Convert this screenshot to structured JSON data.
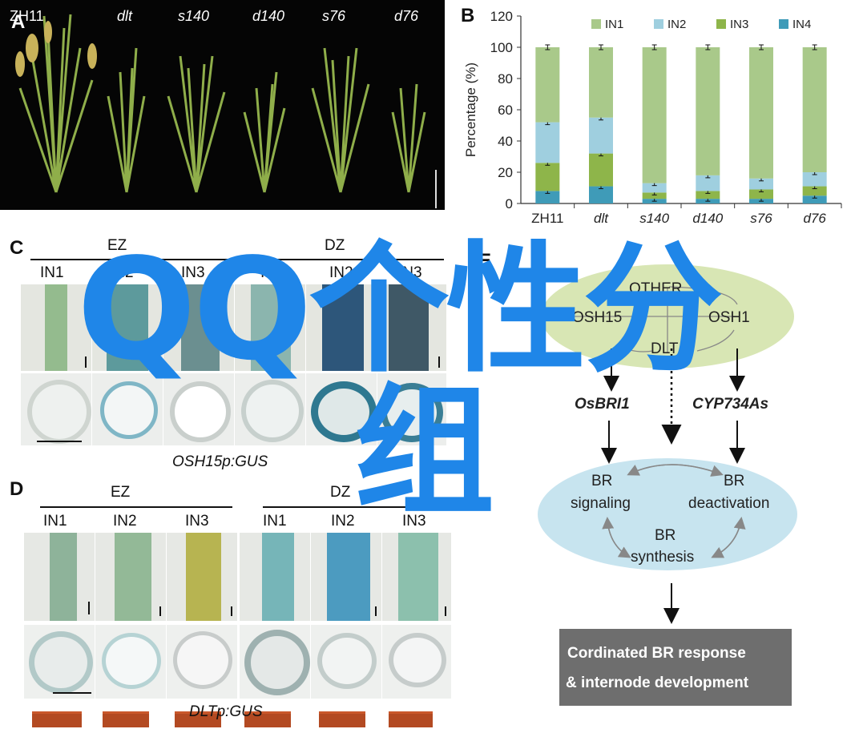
{
  "panels": {
    "A": {
      "letter": "A",
      "genotypes": [
        "ZH11",
        "dlt",
        "s140",
        "d140",
        "s76",
        "d76"
      ]
    },
    "B": {
      "letter": "B"
    },
    "C": {
      "letter": "C",
      "zone_ez": "EZ",
      "zone_dz": "DZ",
      "internodes": [
        "IN1",
        "IN2",
        "IN3",
        "IN1",
        "IN2",
        "IN3"
      ],
      "caption": "OSH15p:GUS"
    },
    "D": {
      "letter": "D",
      "zone_ez": "EZ",
      "zone_dz": "DZ",
      "internodes": [
        "IN1",
        "IN2",
        "IN3",
        "IN1",
        "IN2",
        "IN3"
      ],
      "caption": "DLTp:GUS"
    },
    "E": {
      "letter": "E",
      "complex": [
        "OTHER",
        "OSH15",
        "OSH1",
        "DLT"
      ],
      "targets": [
        "OsBRI1",
        "CYP734As"
      ],
      "br_nodes": {
        "signaling_1": "BR",
        "signaling_2": "signaling",
        "deactivation_1": "BR",
        "deactivation_2": "deactivation",
        "synthesis_1": "BR",
        "synthesis_2": "synthesis"
      },
      "outcome_1": "Cordinated BR response",
      "outcome_2": "& internode development"
    }
  },
  "overlay": {
    "line1": "QQ个性分",
    "line2": "组"
  },
  "colors": {
    "IN1": "#a9c98a",
    "IN2": "#9fcfdf",
    "IN3": "#8eb54a",
    "IN4": "#3f9bb8",
    "overlay": "#1f86e8"
  },
  "chart_data": {
    "type": "bar",
    "stacked": true,
    "categories": [
      "ZH11",
      "dlt",
      "s140",
      "d140",
      "s76",
      "d76"
    ],
    "ylabel": "Percentage (%)",
    "ylim": [
      0,
      120
    ],
    "yticks": [
      0,
      20,
      40,
      60,
      80,
      100,
      120
    ],
    "legend_position": "top",
    "series": [
      {
        "name": "IN4",
        "values": [
          8,
          11,
          3,
          3,
          3,
          5
        ]
      },
      {
        "name": "IN3",
        "values": [
          18,
          21,
          4,
          5,
          6,
          6
        ]
      },
      {
        "name": "IN2",
        "values": [
          26,
          23,
          6,
          10,
          7,
          9
        ]
      },
      {
        "name": "IN1",
        "values": [
          48,
          45,
          87,
          82,
          84,
          80
        ]
      }
    ]
  }
}
